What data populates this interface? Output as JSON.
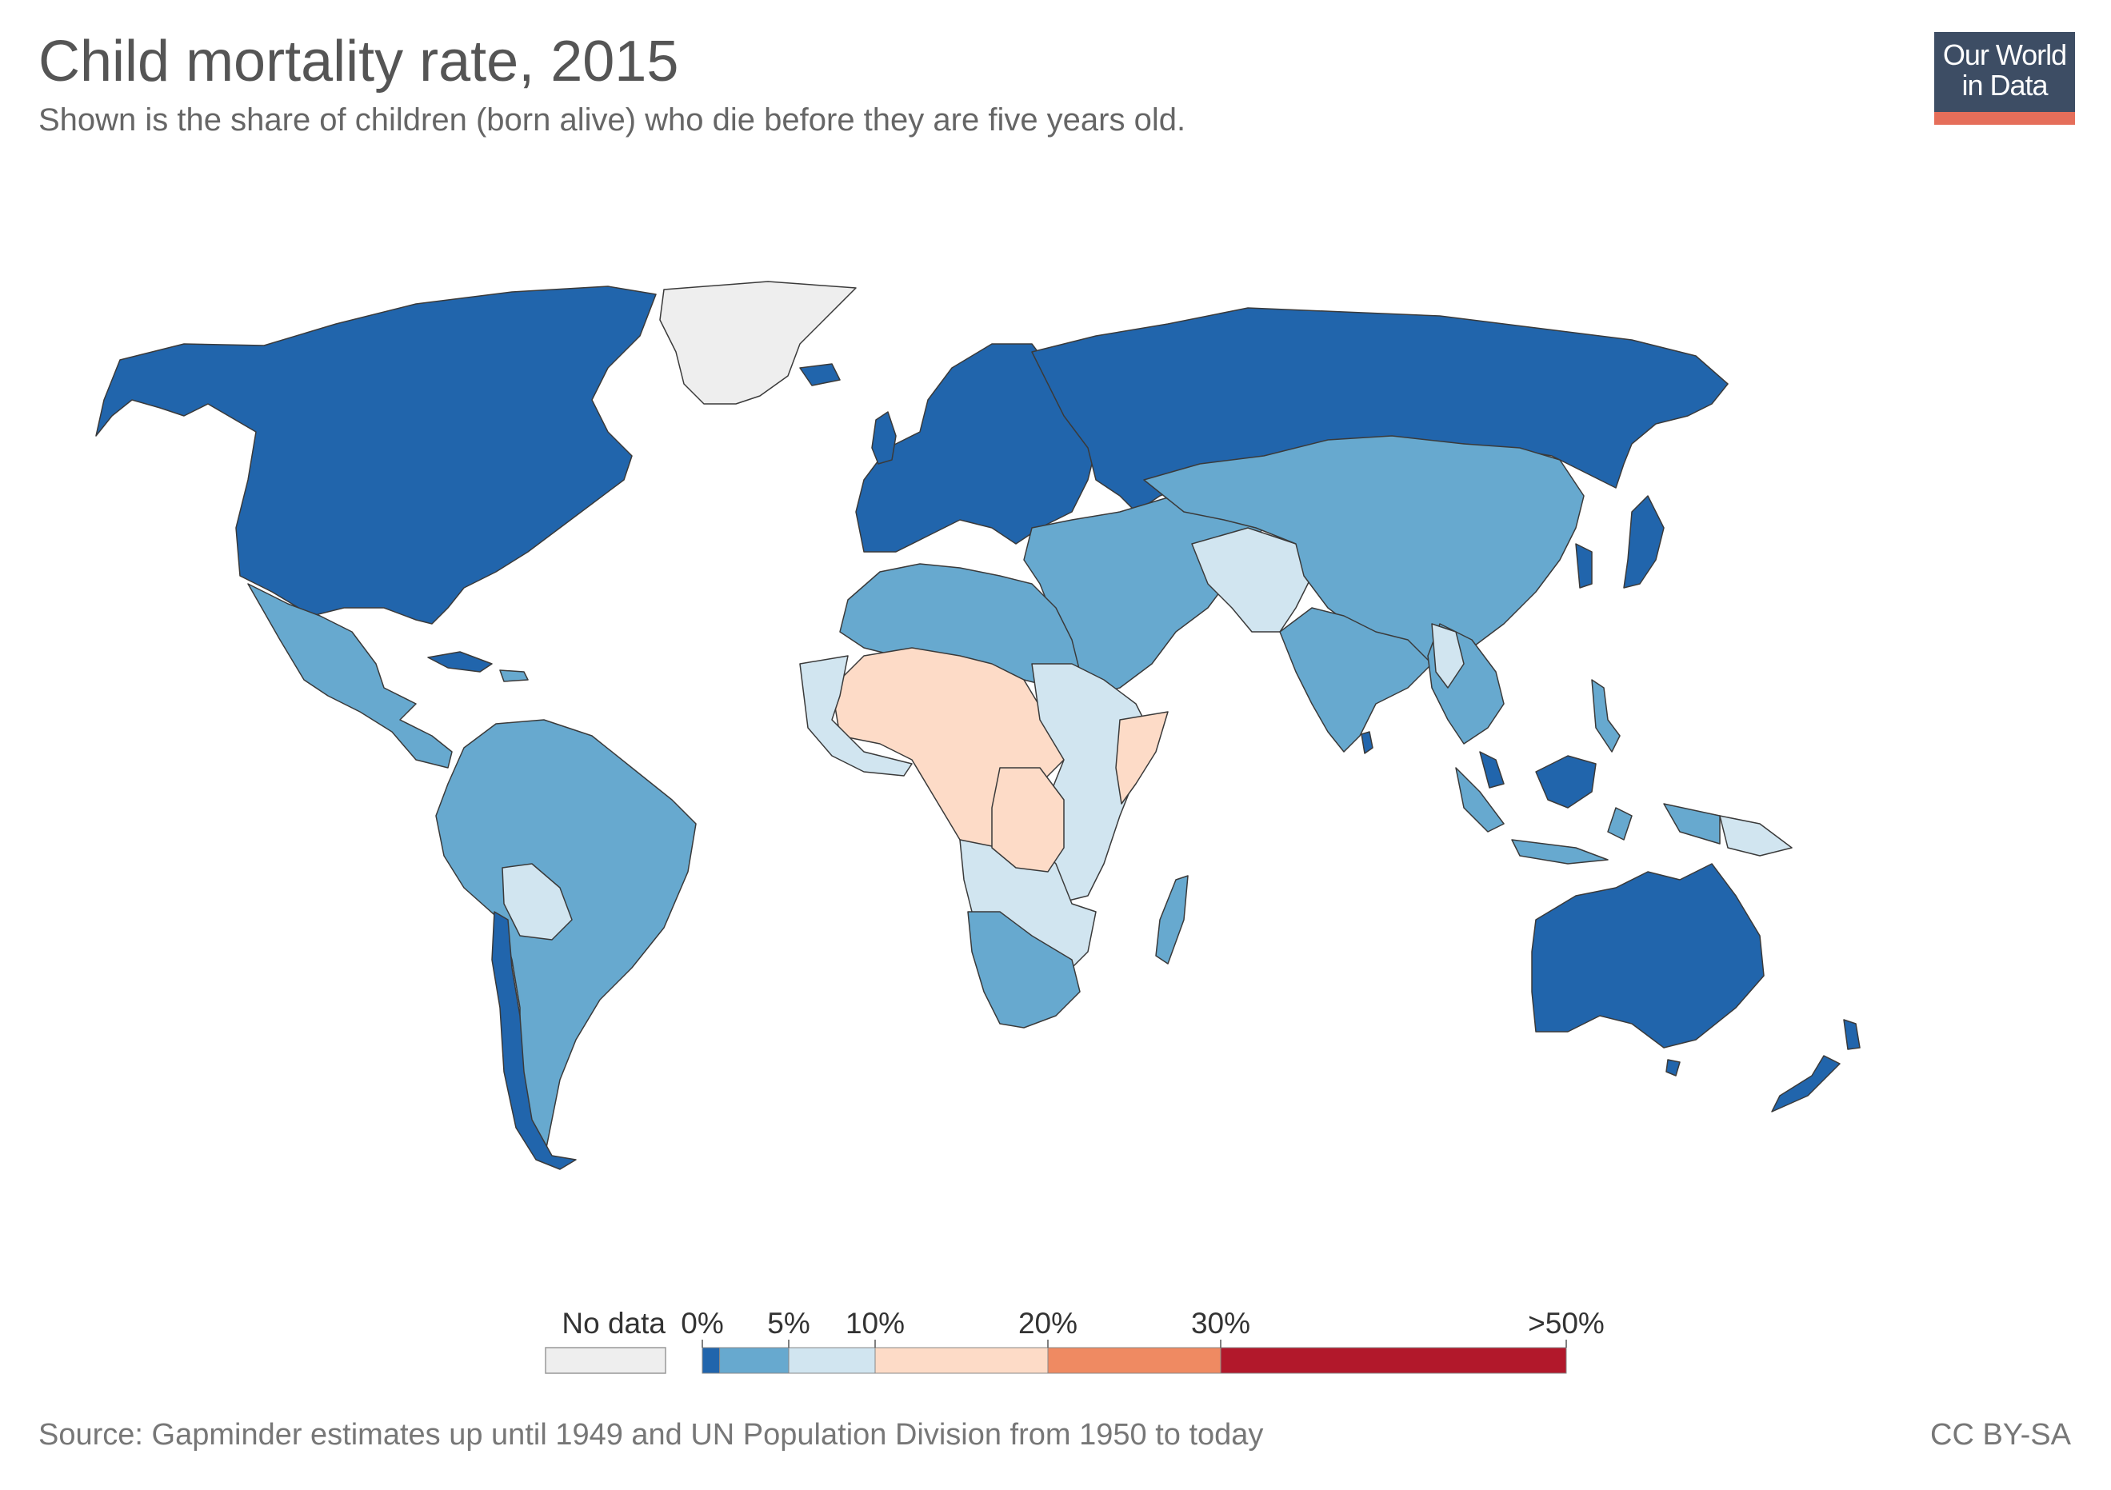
{
  "title": "Child mortality rate, 2015",
  "subtitle": "Shown is the share of children (born alive) who die before they are five years old.",
  "logo": {
    "line1": "Our World",
    "line2": "in Data",
    "bg_color": "#3d4d64",
    "accent_color": "#e56e5a"
  },
  "source": "Source: Gapminder estimates up until 1949 and UN Population Division from 1950 to today",
  "license": "CC BY-SA",
  "legend": {
    "no_data_label": "No data",
    "no_data_color": "#eeeeee",
    "bins": [
      {
        "from": 0,
        "to": 1,
        "color": "#2165ac"
      },
      {
        "from": 1,
        "to": 5,
        "color": "#67a9cf"
      },
      {
        "from": 5,
        "to": 10,
        "color": "#d1e5f0"
      },
      {
        "from": 10,
        "to": 20,
        "color": "#fddbc7"
      },
      {
        "from": 20,
        "to": 30,
        "color": "#ef8a62"
      },
      {
        "from": 30,
        "to": 50,
        "color": "#b2182b"
      }
    ],
    "tick_labels": [
      {
        "value": 0,
        "label": "0%"
      },
      {
        "value": 5,
        "label": "5%"
      },
      {
        "value": 10,
        "label": "10%"
      },
      {
        "value": 20,
        "label": "20%"
      },
      {
        "value": 30,
        "label": "30%"
      },
      {
        "value": 50,
        "label": ">50%"
      }
    ]
  },
  "chart_data": {
    "type": "choropleth",
    "title": "Child mortality rate, 2015",
    "year": 2015,
    "unit": "%",
    "regions": [
      {
        "name": "Greenland",
        "category": "No data"
      },
      {
        "name": "North America",
        "category": "0-1%"
      },
      {
        "name": "Europe",
        "category": "0-1%"
      },
      {
        "name": "Russia",
        "category": "0-1%"
      },
      {
        "name": "Japan",
        "category": "0-1%"
      },
      {
        "name": "Australia",
        "category": "0-1%"
      },
      {
        "name": "New Zealand",
        "category": "0-1%"
      },
      {
        "name": "Chile",
        "category": "0-1%"
      },
      {
        "name": "Cuba",
        "category": "0-1%"
      },
      {
        "name": "Malaysia",
        "category": "0-1%"
      },
      {
        "name": "Sri Lanka",
        "category": "0-1%"
      },
      {
        "name": "Latin America",
        "category": "1-5%"
      },
      {
        "name": "China",
        "category": "1-5%"
      },
      {
        "name": "India",
        "category": "1-5%"
      },
      {
        "name": "Middle East",
        "category": "1-5%"
      },
      {
        "name": "North Africa",
        "category": "1-5%"
      },
      {
        "name": "Southern Africa",
        "category": "1-5%"
      },
      {
        "name": "Indonesia",
        "category": "1-5%"
      },
      {
        "name": "Madagascar",
        "category": "1-5%"
      },
      {
        "name": "Bolivia",
        "category": "5-10%"
      },
      {
        "name": "Pakistan / Afghanistan",
        "category": "5-10%"
      },
      {
        "name": "East Africa",
        "category": "5-10%"
      },
      {
        "name": "Papua New Guinea",
        "category": "5-10%"
      },
      {
        "name": "Sahel / West & Central Africa",
        "category": "10-20%"
      }
    ]
  }
}
